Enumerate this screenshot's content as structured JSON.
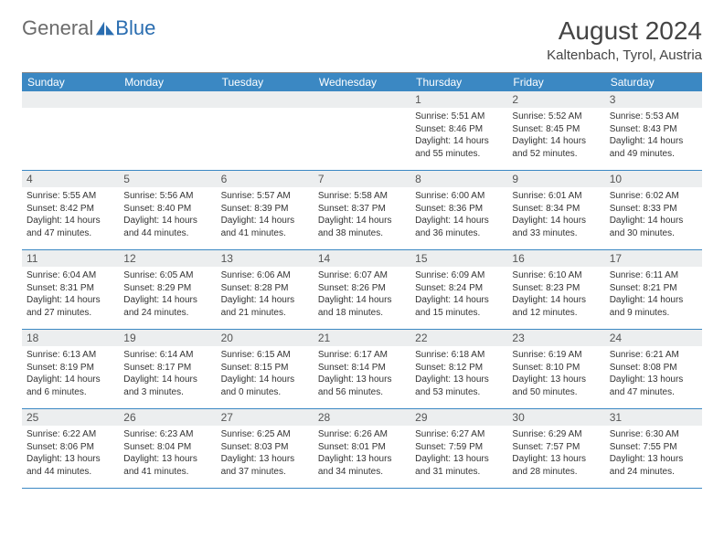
{
  "brand": {
    "name_part1": "General",
    "name_part2": "Blue",
    "color_gray": "#6b6b6b",
    "color_blue": "#2a6db0"
  },
  "title": "August 2024",
  "location": "Kaltenbach, Tyrol, Austria",
  "colors": {
    "header_bg": "#3b88c3",
    "header_text": "#ffffff",
    "daynum_bg": "#eceeef",
    "row_border": "#3b88c3",
    "top_border": "#888888"
  },
  "day_headers": [
    "Sunday",
    "Monday",
    "Tuesday",
    "Wednesday",
    "Thursday",
    "Friday",
    "Saturday"
  ],
  "weeks": [
    [
      {
        "n": "",
        "sun": "",
        "set": "",
        "day": ""
      },
      {
        "n": "",
        "sun": "",
        "set": "",
        "day": ""
      },
      {
        "n": "",
        "sun": "",
        "set": "",
        "day": ""
      },
      {
        "n": "",
        "sun": "",
        "set": "",
        "day": ""
      },
      {
        "n": "1",
        "sun": "Sunrise: 5:51 AM",
        "set": "Sunset: 8:46 PM",
        "day": "Daylight: 14 hours and 55 minutes."
      },
      {
        "n": "2",
        "sun": "Sunrise: 5:52 AM",
        "set": "Sunset: 8:45 PM",
        "day": "Daylight: 14 hours and 52 minutes."
      },
      {
        "n": "3",
        "sun": "Sunrise: 5:53 AM",
        "set": "Sunset: 8:43 PM",
        "day": "Daylight: 14 hours and 49 minutes."
      }
    ],
    [
      {
        "n": "4",
        "sun": "Sunrise: 5:55 AM",
        "set": "Sunset: 8:42 PM",
        "day": "Daylight: 14 hours and 47 minutes."
      },
      {
        "n": "5",
        "sun": "Sunrise: 5:56 AM",
        "set": "Sunset: 8:40 PM",
        "day": "Daylight: 14 hours and 44 minutes."
      },
      {
        "n": "6",
        "sun": "Sunrise: 5:57 AM",
        "set": "Sunset: 8:39 PM",
        "day": "Daylight: 14 hours and 41 minutes."
      },
      {
        "n": "7",
        "sun": "Sunrise: 5:58 AM",
        "set": "Sunset: 8:37 PM",
        "day": "Daylight: 14 hours and 38 minutes."
      },
      {
        "n": "8",
        "sun": "Sunrise: 6:00 AM",
        "set": "Sunset: 8:36 PM",
        "day": "Daylight: 14 hours and 36 minutes."
      },
      {
        "n": "9",
        "sun": "Sunrise: 6:01 AM",
        "set": "Sunset: 8:34 PM",
        "day": "Daylight: 14 hours and 33 minutes."
      },
      {
        "n": "10",
        "sun": "Sunrise: 6:02 AM",
        "set": "Sunset: 8:33 PM",
        "day": "Daylight: 14 hours and 30 minutes."
      }
    ],
    [
      {
        "n": "11",
        "sun": "Sunrise: 6:04 AM",
        "set": "Sunset: 8:31 PM",
        "day": "Daylight: 14 hours and 27 minutes."
      },
      {
        "n": "12",
        "sun": "Sunrise: 6:05 AM",
        "set": "Sunset: 8:29 PM",
        "day": "Daylight: 14 hours and 24 minutes."
      },
      {
        "n": "13",
        "sun": "Sunrise: 6:06 AM",
        "set": "Sunset: 8:28 PM",
        "day": "Daylight: 14 hours and 21 minutes."
      },
      {
        "n": "14",
        "sun": "Sunrise: 6:07 AM",
        "set": "Sunset: 8:26 PM",
        "day": "Daylight: 14 hours and 18 minutes."
      },
      {
        "n": "15",
        "sun": "Sunrise: 6:09 AM",
        "set": "Sunset: 8:24 PM",
        "day": "Daylight: 14 hours and 15 minutes."
      },
      {
        "n": "16",
        "sun": "Sunrise: 6:10 AM",
        "set": "Sunset: 8:23 PM",
        "day": "Daylight: 14 hours and 12 minutes."
      },
      {
        "n": "17",
        "sun": "Sunrise: 6:11 AM",
        "set": "Sunset: 8:21 PM",
        "day": "Daylight: 14 hours and 9 minutes."
      }
    ],
    [
      {
        "n": "18",
        "sun": "Sunrise: 6:13 AM",
        "set": "Sunset: 8:19 PM",
        "day": "Daylight: 14 hours and 6 minutes."
      },
      {
        "n": "19",
        "sun": "Sunrise: 6:14 AM",
        "set": "Sunset: 8:17 PM",
        "day": "Daylight: 14 hours and 3 minutes."
      },
      {
        "n": "20",
        "sun": "Sunrise: 6:15 AM",
        "set": "Sunset: 8:15 PM",
        "day": "Daylight: 14 hours and 0 minutes."
      },
      {
        "n": "21",
        "sun": "Sunrise: 6:17 AM",
        "set": "Sunset: 8:14 PM",
        "day": "Daylight: 13 hours and 56 minutes."
      },
      {
        "n": "22",
        "sun": "Sunrise: 6:18 AM",
        "set": "Sunset: 8:12 PM",
        "day": "Daylight: 13 hours and 53 minutes."
      },
      {
        "n": "23",
        "sun": "Sunrise: 6:19 AM",
        "set": "Sunset: 8:10 PM",
        "day": "Daylight: 13 hours and 50 minutes."
      },
      {
        "n": "24",
        "sun": "Sunrise: 6:21 AM",
        "set": "Sunset: 8:08 PM",
        "day": "Daylight: 13 hours and 47 minutes."
      }
    ],
    [
      {
        "n": "25",
        "sun": "Sunrise: 6:22 AM",
        "set": "Sunset: 8:06 PM",
        "day": "Daylight: 13 hours and 44 minutes."
      },
      {
        "n": "26",
        "sun": "Sunrise: 6:23 AM",
        "set": "Sunset: 8:04 PM",
        "day": "Daylight: 13 hours and 41 minutes."
      },
      {
        "n": "27",
        "sun": "Sunrise: 6:25 AM",
        "set": "Sunset: 8:03 PM",
        "day": "Daylight: 13 hours and 37 minutes."
      },
      {
        "n": "28",
        "sun": "Sunrise: 6:26 AM",
        "set": "Sunset: 8:01 PM",
        "day": "Daylight: 13 hours and 34 minutes."
      },
      {
        "n": "29",
        "sun": "Sunrise: 6:27 AM",
        "set": "Sunset: 7:59 PM",
        "day": "Daylight: 13 hours and 31 minutes."
      },
      {
        "n": "30",
        "sun": "Sunrise: 6:29 AM",
        "set": "Sunset: 7:57 PM",
        "day": "Daylight: 13 hours and 28 minutes."
      },
      {
        "n": "31",
        "sun": "Sunrise: 6:30 AM",
        "set": "Sunset: 7:55 PM",
        "day": "Daylight: 13 hours and 24 minutes."
      }
    ]
  ]
}
